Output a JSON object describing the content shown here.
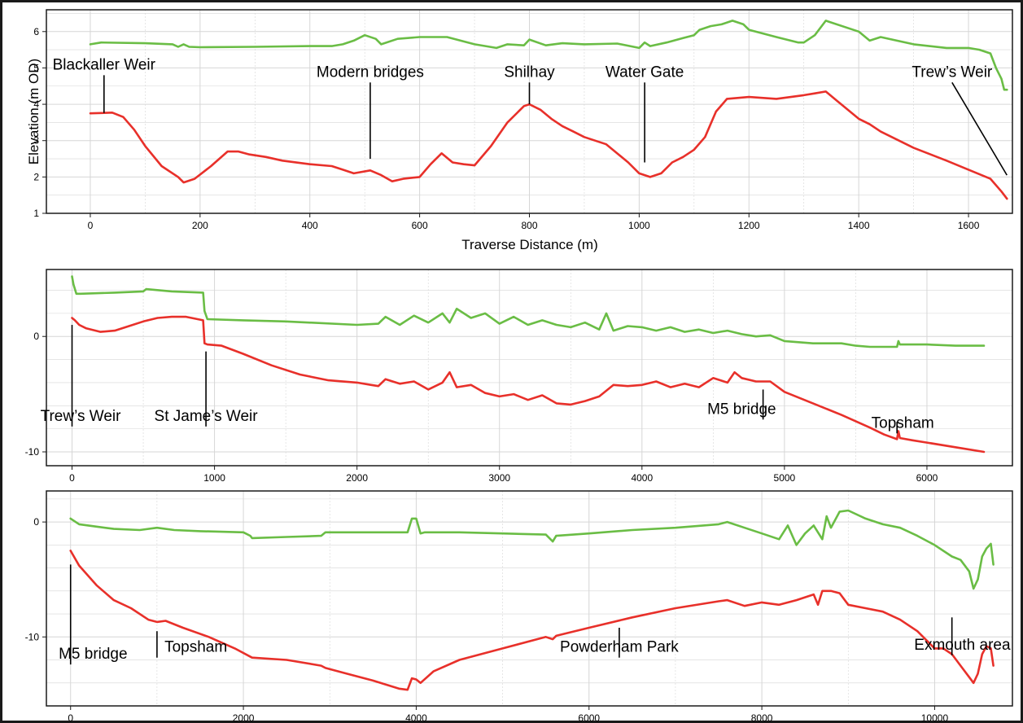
{
  "colors": {
    "frame": "#1a1a1a",
    "grid": "#d6d6d6",
    "annotation_line": "#000000"
  },
  "chart_data": [
    {
      "type": "line",
      "title": "",
      "xlabel": "Traverse Distance (m)",
      "ylabel": "Elevation (m OD)",
      "xlim": [
        -80,
        1680
      ],
      "ylim": [
        1,
        6.6
      ],
      "xticks": [
        0,
        200,
        400,
        600,
        800,
        1000,
        1200,
        1400,
        1600
      ],
      "yticks": [
        1,
        2,
        3,
        4,
        5,
        6
      ],
      "grid": true,
      "series": [
        {
          "color": "#6abd45",
          "x": [
            0,
            20,
            100,
            150,
            160,
            170,
            180,
            200,
            300,
            400,
            440,
            460,
            480,
            500,
            520,
            530,
            560,
            600,
            650,
            700,
            740,
            760,
            790,
            800,
            830,
            860,
            900,
            960,
            1000,
            1010,
            1020,
            1050,
            1080,
            1100,
            1110,
            1130,
            1150,
            1170,
            1190,
            1200,
            1250,
            1290,
            1300,
            1320,
            1340,
            1400,
            1420,
            1440,
            1500,
            1560,
            1600,
            1620,
            1640,
            1650,
            1660,
            1665,
            1670
          ],
          "y": [
            5.65,
            5.7,
            5.68,
            5.65,
            5.58,
            5.65,
            5.58,
            5.57,
            5.58,
            5.6,
            5.6,
            5.65,
            5.75,
            5.9,
            5.8,
            5.65,
            5.8,
            5.85,
            5.85,
            5.65,
            5.55,
            5.65,
            5.62,
            5.78,
            5.62,
            5.68,
            5.65,
            5.67,
            5.55,
            5.7,
            5.6,
            5.7,
            5.82,
            5.9,
            6.05,
            6.15,
            6.2,
            6.3,
            6.2,
            6.05,
            5.85,
            5.7,
            5.7,
            5.9,
            6.3,
            6.0,
            5.75,
            5.85,
            5.65,
            5.55,
            5.55,
            5.5,
            5.4,
            5.0,
            4.7,
            4.4,
            4.4
          ]
        },
        {
          "color": "#e8302a",
          "x": [
            0,
            20,
            40,
            60,
            80,
            100,
            130,
            160,
            170,
            190,
            220,
            250,
            270,
            290,
            320,
            350,
            400,
            440,
            460,
            480,
            510,
            530,
            550,
            570,
            600,
            620,
            640,
            660,
            680,
            700,
            730,
            760,
            790,
            800,
            820,
            840,
            860,
            880,
            900,
            940,
            980,
            1000,
            1020,
            1040,
            1060,
            1080,
            1100,
            1120,
            1140,
            1160,
            1200,
            1250,
            1300,
            1320,
            1340,
            1360,
            1400,
            1420,
            1440,
            1500,
            1560,
            1600,
            1640,
            1660,
            1670
          ],
          "y": [
            3.75,
            3.76,
            3.77,
            3.65,
            3.3,
            2.85,
            2.3,
            2.0,
            1.85,
            1.95,
            2.3,
            2.7,
            2.7,
            2.62,
            2.55,
            2.45,
            2.35,
            2.3,
            2.2,
            2.1,
            2.18,
            2.05,
            1.88,
            1.95,
            2.0,
            2.35,
            2.65,
            2.4,
            2.35,
            2.32,
            2.85,
            3.5,
            3.95,
            4.0,
            3.85,
            3.6,
            3.4,
            3.25,
            3.1,
            2.9,
            2.4,
            2.1,
            2.0,
            2.1,
            2.4,
            2.55,
            2.75,
            3.1,
            3.8,
            4.15,
            4.2,
            4.15,
            4.25,
            4.3,
            4.35,
            4.1,
            3.6,
            3.45,
            3.25,
            2.8,
            2.45,
            2.2,
            1.95,
            1.6,
            1.4
          ]
        }
      ],
      "annotations": [
        {
          "text": "Blackaller Weir",
          "x": 25,
          "y_from": 4.8,
          "y_to": 3.76,
          "label_x": 25
        },
        {
          "text": "Modern bridges",
          "x": 510,
          "y_from": 4.6,
          "y_to": 2.5,
          "label_x": 510
        },
        {
          "text": "Shilhay",
          "x": 800,
          "y_from": 4.6,
          "y_to": 4.0,
          "label_x": 800
        },
        {
          "text": "Water Gate",
          "x": 1010,
          "y_from": 4.6,
          "y_to": 2.4,
          "label_x": 1010
        },
        {
          "text": "Trew’s Weir",
          "x": 1570,
          "y_from": 4.6,
          "y_to": 2.05,
          "x_to": 1670,
          "label_x": 1570
        }
      ]
    },
    {
      "type": "line",
      "title": "",
      "xlabel": "",
      "ylabel": "",
      "xlim": [
        -180,
        6600
      ],
      "ylim": [
        -11.2,
        5.8
      ],
      "xticks": [
        0,
        1000,
        2000,
        3000,
        4000,
        5000,
        6000
      ],
      "yticks": [
        -10,
        0
      ],
      "grid": true,
      "series": [
        {
          "color": "#6abd45",
          "x": [
            0,
            10,
            30,
            60,
            300,
            500,
            520,
            700,
            920,
            930,
            950,
            1200,
            1500,
            2000,
            2150,
            2200,
            2300,
            2400,
            2500,
            2600,
            2650,
            2700,
            2800,
            2900,
            3000,
            3100,
            3200,
            3300,
            3400,
            3500,
            3600,
            3700,
            3750,
            3800,
            3900,
            4000,
            4100,
            4200,
            4300,
            4400,
            4500,
            4600,
            4700,
            4800,
            4900,
            5000,
            5200,
            5400,
            5500,
            5600,
            5700,
            5790,
            5800,
            5810,
            6000,
            6200,
            6400
          ],
          "y": [
            5.2,
            4.5,
            3.7,
            3.7,
            3.8,
            3.9,
            4.1,
            3.9,
            3.8,
            2.2,
            1.5,
            1.4,
            1.3,
            1.0,
            1.1,
            1.7,
            1.0,
            1.8,
            1.2,
            2.0,
            1.2,
            2.4,
            1.6,
            2.0,
            1.1,
            1.7,
            1.0,
            1.4,
            1.0,
            0.8,
            1.2,
            0.6,
            2.0,
            0.5,
            0.9,
            0.8,
            0.5,
            0.8,
            0.4,
            0.6,
            0.3,
            0.5,
            0.2,
            0.0,
            0.1,
            -0.4,
            -0.6,
            -0.6,
            -0.8,
            -0.9,
            -0.9,
            -0.9,
            -0.4,
            -0.7,
            -0.7,
            -0.8,
            -0.8
          ]
        },
        {
          "color": "#e8302a",
          "x": [
            0,
            20,
            50,
            100,
            200,
            300,
            400,
            500,
            600,
            700,
            800,
            920,
            930,
            950,
            1050,
            1200,
            1400,
            1600,
            1800,
            2000,
            2100,
            2150,
            2200,
            2300,
            2400,
            2500,
            2600,
            2650,
            2700,
            2800,
            2900,
            3000,
            3100,
            3200,
            3300,
            3400,
            3500,
            3600,
            3700,
            3800,
            3900,
            4000,
            4100,
            4200,
            4300,
            4400,
            4500,
            4600,
            4650,
            4700,
            4800,
            4900,
            5000,
            5200,
            5400,
            5600,
            5700,
            5790,
            5800,
            5810,
            5900,
            6000,
            6200,
            6400
          ],
          "y": [
            1.6,
            1.4,
            1.0,
            0.7,
            0.4,
            0.5,
            0.9,
            1.3,
            1.6,
            1.7,
            1.7,
            1.4,
            -0.6,
            -0.7,
            -0.8,
            -1.5,
            -2.5,
            -3.3,
            -3.8,
            -4.0,
            -4.2,
            -4.3,
            -3.7,
            -4.1,
            -3.9,
            -4.6,
            -4.0,
            -3.1,
            -4.4,
            -4.2,
            -4.9,
            -5.2,
            -5.0,
            -5.5,
            -5.1,
            -5.8,
            -5.9,
            -5.6,
            -5.2,
            -4.2,
            -4.3,
            -4.2,
            -3.9,
            -4.4,
            -4.1,
            -4.4,
            -3.6,
            -4.0,
            -3.1,
            -3.6,
            -3.9,
            -3.9,
            -4.8,
            -5.8,
            -6.8,
            -7.9,
            -8.5,
            -8.9,
            -8.2,
            -8.8,
            -9.0,
            -9.2,
            -9.6,
            -10.0
          ]
        }
      ],
      "annotations": [
        {
          "text": "Trew’s Weir",
          "x": 0,
          "y_from": -7.8,
          "y_to": 1.0,
          "label_x": 60
        },
        {
          "text": "St Jame’s Weir",
          "x": 940,
          "y_from": -7.8,
          "y_to": -1.3,
          "label_x": 940
        },
        {
          "text": "M5 bridge",
          "x": 4850,
          "y_from": -7.2,
          "y_to": -4.6,
          "label_x": 4700
        },
        {
          "text": "Topsham",
          "x": 5790,
          "y_from": -8.4,
          "y_to": -7.4,
          "label_x": 5830
        }
      ]
    },
    {
      "type": "line",
      "title": "",
      "xlabel": "",
      "ylabel": "",
      "xlim": [
        -280,
        10900
      ],
      "ylim": [
        -16,
        2.7
      ],
      "xticks": [
        0,
        2000,
        4000,
        6000,
        8000,
        10000
      ],
      "yticks": [
        -10,
        0
      ],
      "grid": true,
      "series": [
        {
          "color": "#6abd45",
          "x": [
            0,
            100,
            300,
            500,
            800,
            1000,
            1200,
            1500,
            2000,
            2080,
            2100,
            2500,
            2900,
            2950,
            3500,
            3900,
            3950,
            4000,
            4050,
            4100,
            4500,
            5000,
            5500,
            5580,
            5620,
            6000,
            6500,
            7000,
            7500,
            7600,
            7800,
            8000,
            8200,
            8300,
            8400,
            8500,
            8600,
            8700,
            8750,
            8800,
            8900,
            9000,
            9200,
            9400,
            9600,
            9800,
            10000,
            10200,
            10300,
            10400,
            10450,
            10500,
            10550,
            10600,
            10650,
            10680
          ],
          "y": [
            0.3,
            -0.2,
            -0.4,
            -0.6,
            -0.7,
            -0.5,
            -0.7,
            -0.8,
            -0.9,
            -1.2,
            -1.4,
            -1.3,
            -1.2,
            -0.9,
            -0.9,
            -0.9,
            0.3,
            0.3,
            -1.0,
            -0.9,
            -0.9,
            -1.0,
            -1.1,
            -1.7,
            -1.2,
            -1.0,
            -0.7,
            -0.5,
            -0.2,
            0.0,
            -0.5,
            -1.0,
            -1.5,
            -0.3,
            -2.0,
            -1.0,
            -0.3,
            -1.5,
            0.5,
            -0.5,
            0.9,
            1.0,
            0.3,
            -0.2,
            -0.5,
            -1.2,
            -2.0,
            -3.0,
            -3.3,
            -4.3,
            -5.8,
            -5.0,
            -3.0,
            -2.3,
            -1.9,
            -3.7
          ]
        },
        {
          "color": "#e8302a",
          "x": [
            0,
            100,
            300,
            500,
            700,
            900,
            1000,
            1100,
            1300,
            1600,
            1900,
            2100,
            2500,
            2900,
            2950,
            3200,
            3500,
            3800,
            3900,
            3950,
            4000,
            4050,
            4200,
            4500,
            5000,
            5500,
            5580,
            5620,
            6000,
            6500,
            7000,
            7500,
            7600,
            7800,
            8000,
            8200,
            8400,
            8600,
            8650,
            8700,
            8800,
            8900,
            9000,
            9200,
            9400,
            9600,
            9800,
            10000,
            10100,
            10200,
            10300,
            10400,
            10450,
            10500,
            10550,
            10600,
            10650,
            10680
          ],
          "y": [
            -2.5,
            -3.8,
            -5.5,
            -6.8,
            -7.5,
            -8.5,
            -8.7,
            -8.6,
            -9.2,
            -10.0,
            -11.0,
            -11.8,
            -12.0,
            -12.5,
            -12.7,
            -13.2,
            -13.8,
            -14.5,
            -14.6,
            -13.6,
            -13.7,
            -14.0,
            -13.0,
            -12.0,
            -11.0,
            -10.0,
            -10.2,
            -9.9,
            -9.2,
            -8.3,
            -7.5,
            -6.9,
            -6.8,
            -7.3,
            -7.0,
            -7.2,
            -6.8,
            -6.3,
            -7.2,
            -6.0,
            -6.0,
            -6.2,
            -7.2,
            -7.5,
            -7.8,
            -8.5,
            -9.5,
            -11.0,
            -11.0,
            -11.5,
            -12.5,
            -13.5,
            -14.0,
            -13.2,
            -11.5,
            -10.8,
            -11.0,
            -12.5
          ]
        }
      ],
      "annotations": [
        {
          "text": "M5 bridge",
          "x": 0,
          "y_from": -12.4,
          "y_to": -3.7,
          "label_x": 260
        },
        {
          "text": "Topsham",
          "x": 1000,
          "y_from": -11.8,
          "y_to": -9.5,
          "label_x": 1450
        },
        {
          "text": "Powderham Park",
          "x": 6350,
          "y_from": -11.8,
          "y_to": -9.2,
          "label_x": 6350
        },
        {
          "text": "Exmouth area",
          "x": 10200,
          "y_from": -11.6,
          "y_to": -8.3,
          "label_x": 10320
        }
      ]
    }
  ]
}
